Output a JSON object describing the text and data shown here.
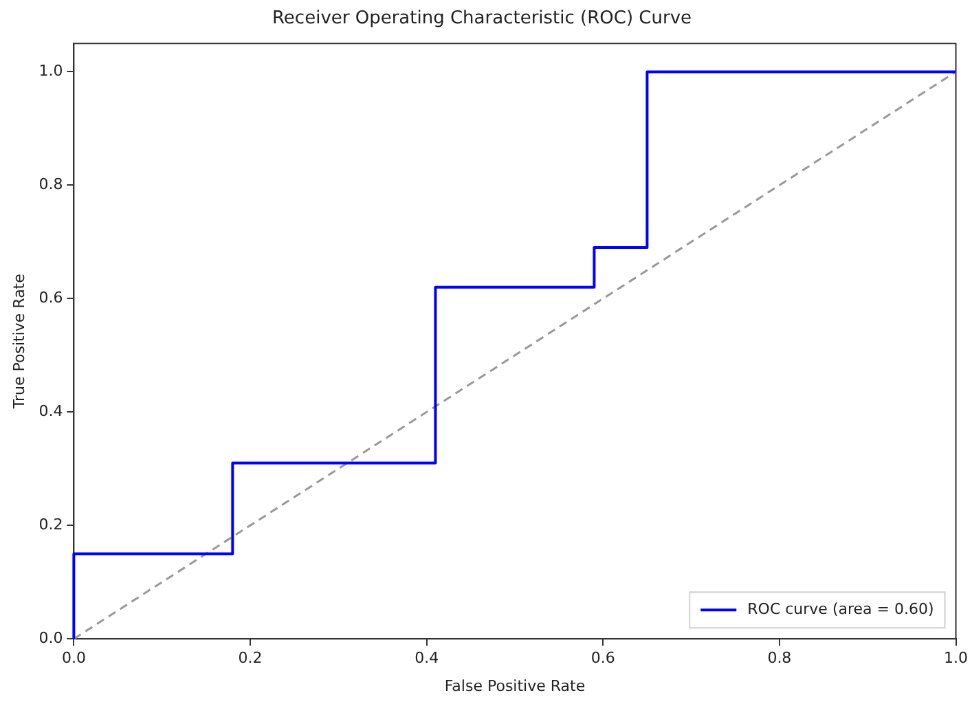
{
  "chart_data": {
    "type": "line",
    "title": "Receiver Operating Characteristic (ROC) Curve",
    "xlabel": "False Positive Rate",
    "ylabel": "True Positive Rate",
    "series": [
      {
        "name": "ROC curve (area = 0.60)",
        "color": "#0000ff",
        "x": [
          0,
          0,
          0.18,
          0.18,
          0.41,
          0.41,
          0.59,
          0.59,
          0.65,
          0.65,
          1.0
        ],
        "values": [
          0,
          0.15,
          0.15,
          0.31,
          0.31,
          0.62,
          0.62,
          0.69,
          0.69,
          1.0,
          1.0
        ],
        "line_style": "solid"
      },
      {
        "color": "#999999",
        "x": [
          0,
          1
        ],
        "values": [
          0,
          1
        ],
        "line_style": "dashed"
      }
    ],
    "xlim": [
      0,
      1
    ],
    "ylim": [
      0,
      1.05
    ],
    "xticks": [
      {
        "value": 0,
        "label": "0.0"
      },
      0.2,
      0.4,
      0.6,
      0.8,
      {
        "value": 1,
        "label": "1.0"
      }
    ],
    "yticks": [
      {
        "value": 0,
        "label": "0.0"
      },
      0.2,
      0.4,
      0.6,
      0.8,
      {
        "value": 1,
        "label": "1.0"
      }
    ],
    "grid": false,
    "legend": "bottom right",
    "marker": "none"
  }
}
